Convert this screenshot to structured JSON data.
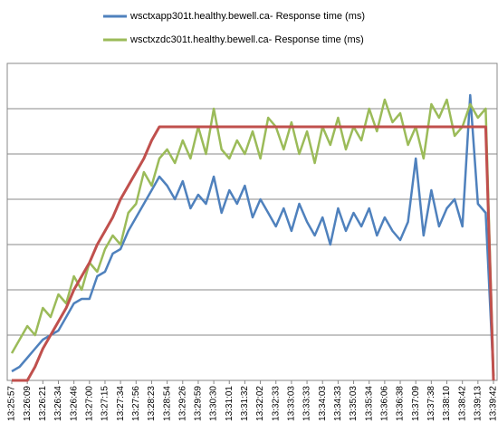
{
  "chart_data": {
    "type": "line",
    "categories": [
      "13:25:57",
      null,
      "13:26:09",
      null,
      "13:26:21",
      null,
      "13:26:34",
      null,
      "13:26:46",
      null,
      "13:27:00",
      null,
      "13:27:15",
      null,
      "13:27:34",
      null,
      "13:27:56",
      null,
      "13:28:23",
      null,
      "13:28:54",
      null,
      "13:29:26",
      null,
      "13:29:59",
      null,
      "13:30:30",
      null,
      "13:31:01",
      null,
      "13:31:32",
      null,
      "13:32:02",
      null,
      "13:32:33",
      null,
      "13:33:03",
      null,
      "13:33:33",
      null,
      "13:34:03",
      null,
      "13:34:33",
      null,
      "13:35:03",
      null,
      "13:35:34",
      null,
      "13:36:06",
      null,
      "13:36:38",
      null,
      "13:37:09",
      null,
      "13:37:38",
      null,
      "13:38:10",
      null,
      "13:38:42",
      null,
      "13:39:13",
      null,
      "13:39:42"
    ],
    "series": [
      {
        "name": "wsctxapp301t.healthy.bewell.ca-  Response time (ms)",
        "color": "#4f81bd",
        "values": [
          0.2,
          0.3,
          0.5,
          0.7,
          0.9,
          1.0,
          1.1,
          1.4,
          1.7,
          1.8,
          1.8,
          2.3,
          2.4,
          2.8,
          2.9,
          3.3,
          3.6,
          3.9,
          4.2,
          4.5,
          4.3,
          4.0,
          4.4,
          3.8,
          4.1,
          3.9,
          4.5,
          3.7,
          4.2,
          3.9,
          4.3,
          3.6,
          4.0,
          3.7,
          3.4,
          3.8,
          3.3,
          3.9,
          3.5,
          3.2,
          3.6,
          3.0,
          3.8,
          3.3,
          3.7,
          3.4,
          3.8,
          3.2,
          3.6,
          3.3,
          3.1,
          3.5,
          4.9,
          3.2,
          4.2,
          3.4,
          3.8,
          4.0,
          3.4,
          6.3,
          3.9,
          3.7,
          0.1
        ]
      },
      {
        "name": "wsctxzdc301t.healthy.bewell.ca-  Response time (ms)",
        "color": "#9bbb59",
        "values": [
          0.6,
          0.9,
          1.2,
          1.0,
          1.6,
          1.4,
          1.9,
          1.7,
          2.3,
          2.0,
          2.6,
          2.4,
          2.9,
          3.2,
          3.0,
          3.7,
          3.9,
          4.6,
          4.3,
          4.9,
          5.1,
          4.8,
          5.3,
          4.9,
          5.6,
          5.0,
          6.0,
          5.1,
          4.9,
          5.3,
          5.0,
          5.5,
          4.9,
          5.8,
          5.6,
          5.1,
          5.7,
          5.0,
          5.5,
          4.8,
          5.6,
          5.2,
          5.8,
          5.1,
          5.6,
          5.3,
          6.0,
          5.5,
          6.2,
          5.7,
          5.9,
          5.2,
          5.6,
          4.9,
          6.1,
          5.8,
          6.2,
          5.4,
          5.6,
          6.1,
          5.8,
          6.0,
          0.1
        ]
      },
      {
        "color": "#c0504d",
        "values": [
          0,
          0,
          0,
          0.3,
          0.7,
          1.0,
          1.3,
          1.6,
          2.0,
          2.3,
          2.6,
          3.0,
          3.3,
          3.6,
          4.0,
          4.3,
          4.6,
          4.9,
          5.3,
          5.6,
          5.6,
          5.6,
          5.6,
          5.6,
          5.6,
          5.6,
          5.6,
          5.6,
          5.6,
          5.6,
          5.6,
          5.6,
          5.6,
          5.6,
          5.6,
          5.6,
          5.6,
          5.6,
          5.6,
          5.6,
          5.6,
          5.6,
          5.6,
          5.6,
          5.6,
          5.6,
          5.6,
          5.6,
          5.6,
          5.6,
          5.6,
          5.6,
          5.6,
          5.6,
          5.6,
          5.6,
          5.6,
          5.6,
          5.6,
          5.6,
          5.6,
          5.6,
          0
        ]
      }
    ],
    "ylim": [
      0,
      7
    ],
    "yticks": [
      0,
      1,
      2,
      3,
      4,
      5,
      6,
      7
    ],
    "grid": true,
    "legend": "top"
  }
}
